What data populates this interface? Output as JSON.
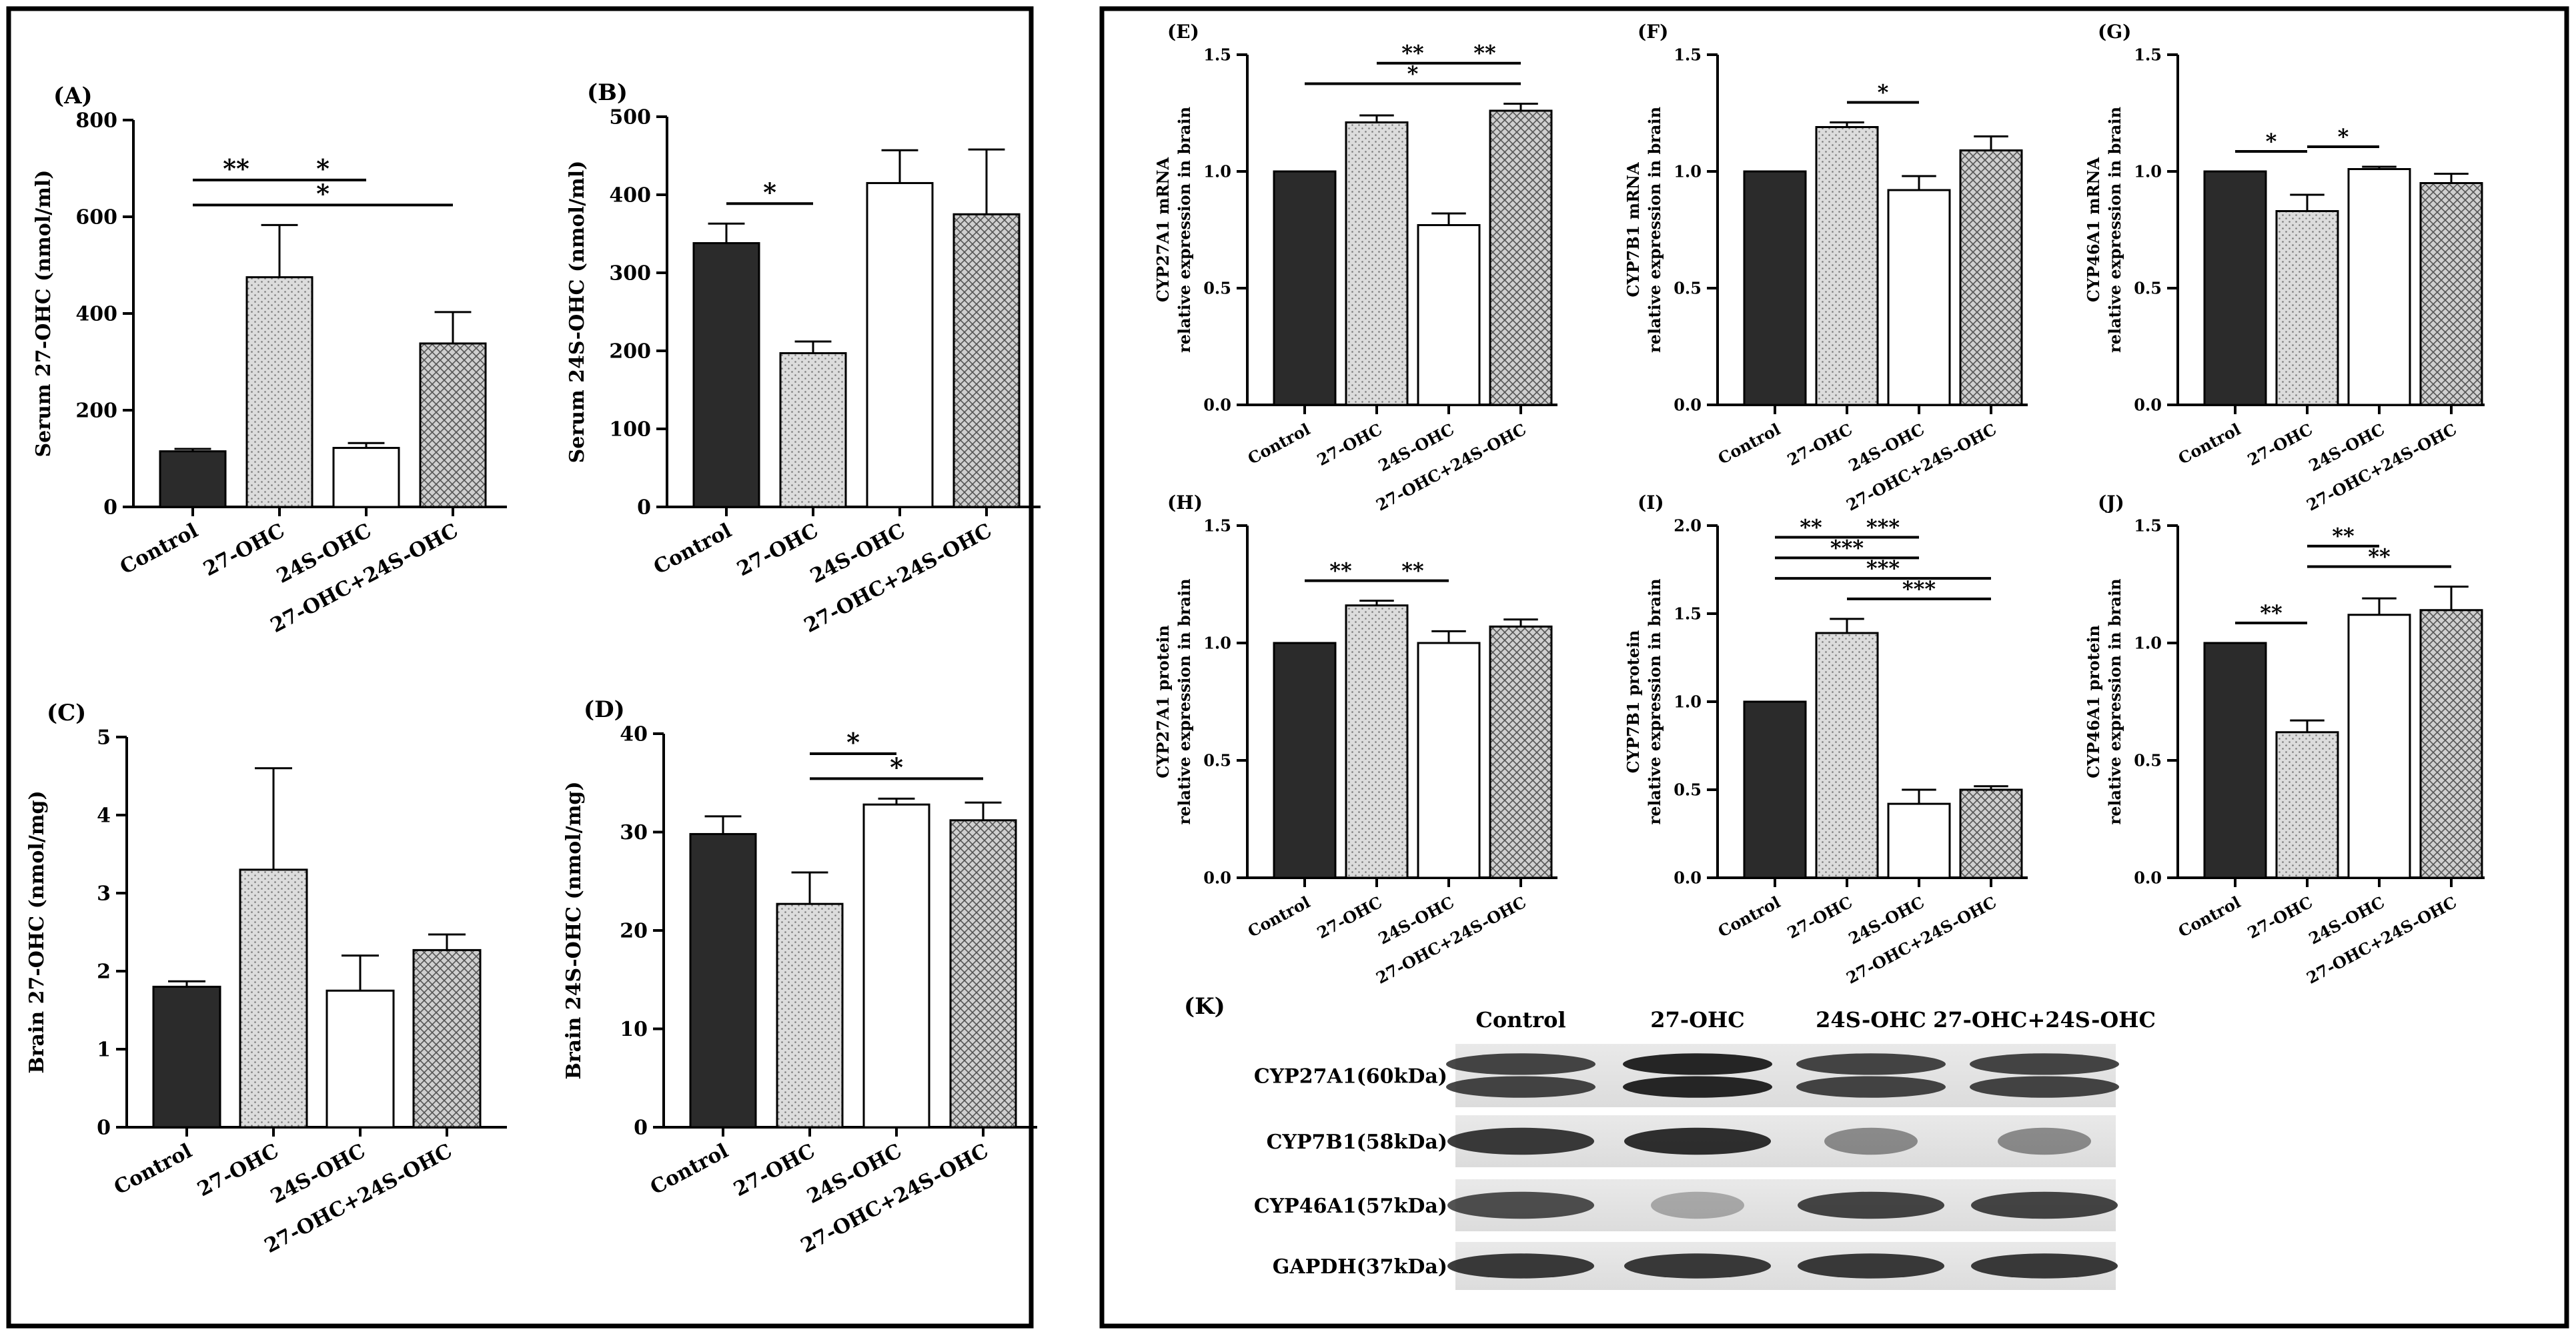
{
  "category_labels": [
    "Control",
    "27-OHC",
    "24S-OHC",
    "27-OHC+24S-OHC"
  ],
  "chart_data": [
    {
      "id": "A",
      "type": "bar",
      "panel_label": "(A)",
      "ylabel": "Serum 27-OHC (nmol/ml)",
      "ylim": [
        0,
        800
      ],
      "yticks": [
        0,
        200,
        400,
        600,
        800
      ],
      "categories": [
        "Control",
        "27-OHC",
        "24S-OHC",
        "27-OHC+24S-OHC"
      ],
      "values": [
        115,
        475,
        122,
        338
      ],
      "errors": [
        5,
        108,
        10,
        65
      ],
      "significance": [
        {
          "from": 0,
          "to": 3,
          "label": "*"
        },
        {
          "from": 0,
          "to": 1,
          "label": "**"
        },
        {
          "from": 1,
          "to": 2,
          "label": "*"
        }
      ]
    },
    {
      "id": "B",
      "type": "bar",
      "panel_label": "(B)",
      "ylabel": "Serum 24S-OHC (nmol/ml)",
      "ylim": [
        0,
        500
      ],
      "yticks": [
        0,
        100,
        200,
        300,
        400,
        500
      ],
      "categories": [
        "Control",
        "27-OHC",
        "24S-OHC",
        "27-OHC+24S-OHC"
      ],
      "values": [
        338,
        197,
        415,
        375
      ],
      "errors": [
        25,
        15,
        42,
        83
      ],
      "significance": [
        {
          "from": 0,
          "to": 1,
          "label": "*"
        }
      ]
    },
    {
      "id": "C",
      "type": "bar",
      "panel_label": "(C)",
      "ylabel": "Brain 27-OHC (nmol/mg)",
      "ylim": [
        0,
        5
      ],
      "yticks": [
        0,
        1,
        2,
        3,
        4,
        5
      ],
      "categories": [
        "Control",
        "27-OHC",
        "24S-OHC",
        "27-OHC+24S-OHC"
      ],
      "values": [
        1.8,
        3.3,
        1.75,
        2.27
      ],
      "errors": [
        0.07,
        1.3,
        0.45,
        0.2
      ],
      "significance": []
    },
    {
      "id": "D",
      "type": "bar",
      "panel_label": "(D)",
      "ylabel": "Brain 24S-OHC (nmol/mg)",
      "ylim": [
        0,
        40
      ],
      "yticks": [
        0,
        10,
        20,
        30,
        40
      ],
      "categories": [
        "Control",
        "27-OHC",
        "24S-OHC",
        "27-OHC+24S-OHC"
      ],
      "values": [
        29.8,
        22.7,
        32.8,
        31.2
      ],
      "errors": [
        1.8,
        3.2,
        0.6,
        1.8
      ],
      "significance": [
        {
          "from": 1,
          "to": 3,
          "label": "*"
        },
        {
          "from": 1,
          "to": 2,
          "label": "*"
        }
      ]
    },
    {
      "id": "E",
      "type": "bar",
      "panel_label": "(E)",
      "ylabel": [
        "CYP27A1 mRNA",
        "relative expression in brain"
      ],
      "ylim": [
        0,
        1.5
      ],
      "yticks": [
        "0.0",
        "0.5",
        "1.0",
        "1.5"
      ],
      "categories": [
        "Control",
        "27-OHC",
        "24S-OHC",
        "27-OHC+24S-OHC"
      ],
      "values": [
        1.0,
        1.21,
        0.77,
        1.26
      ],
      "errors": [
        0,
        0.03,
        0.05,
        0.03
      ],
      "significance": [
        {
          "from": 0,
          "to": 3,
          "label": "*"
        },
        {
          "from": 1,
          "to": 2,
          "label": "**"
        },
        {
          "from": 2,
          "to": 3,
          "label": "**"
        }
      ]
    },
    {
      "id": "F",
      "type": "bar",
      "panel_label": "(F)",
      "ylabel": [
        "CYP7B1 mRNA",
        "relative expression in brain"
      ],
      "ylim": [
        0,
        1.5
      ],
      "yticks": [
        "0.0",
        "0.5",
        "1.0",
        "1.5"
      ],
      "categories": [
        "Control",
        "27-OHC",
        "24S-OHC",
        "27-OHC+24S-OHC"
      ],
      "values": [
        1.0,
        1.19,
        0.92,
        1.09
      ],
      "errors": [
        0,
        0.02,
        0.06,
        0.06
      ],
      "significance": [
        {
          "from": 1,
          "to": 2,
          "label": "*"
        }
      ]
    },
    {
      "id": "G",
      "type": "bar",
      "panel_label": "(G)",
      "ylabel": [
        "CYP46A1 mRNA",
        "relative expression in brain"
      ],
      "ylim": [
        0,
        1.5
      ],
      "yticks": [
        "0.0",
        "0.5",
        "1.0",
        "1.5"
      ],
      "categories": [
        "Control",
        "27-OHC",
        "24S-OHC",
        "27-OHC+24S-OHC"
      ],
      "values": [
        1.0,
        0.83,
        1.01,
        0.95
      ],
      "errors": [
        0,
        0.07,
        0.01,
        0.04
      ],
      "significance": [
        {
          "from": 0,
          "to": 1,
          "label": "*"
        },
        {
          "from": 1,
          "to": 2,
          "label": "*"
        }
      ]
    },
    {
      "id": "H",
      "type": "bar",
      "panel_label": "(H)",
      "ylabel": [
        "CYP27A1 protein",
        "relative expression in brain"
      ],
      "ylim": [
        0,
        1.5
      ],
      "yticks": [
        "0.0",
        "0.5",
        "1.0",
        "1.5"
      ],
      "categories": [
        "Control",
        "27-OHC",
        "24S-OHC",
        "27-OHC+24S-OHC"
      ],
      "values": [
        1.0,
        1.16,
        1.0,
        1.07
      ],
      "errors": [
        0,
        0.02,
        0.05,
        0.03
      ],
      "significance": [
        {
          "from": 0,
          "to": 1,
          "label": "**"
        },
        {
          "from": 1,
          "to": 2,
          "label": "**"
        }
      ]
    },
    {
      "id": "I",
      "type": "bar",
      "panel_label": "(I)",
      "ylabel": [
        "CYP7B1 protein",
        "relative expression in brain"
      ],
      "ylim": [
        0,
        2.0
      ],
      "yticks": [
        "0.0",
        "0.5",
        "1.0",
        "1.5",
        "2.0"
      ],
      "categories": [
        "Control",
        "27-OHC",
        "24S-OHC",
        "27-OHC+24S-OHC"
      ],
      "values": [
        1.0,
        1.39,
        0.42,
        0.5
      ],
      "errors": [
        0,
        0.08,
        0.08,
        0.02
      ],
      "significance": [
        {
          "from": 1,
          "to": 3,
          "label": "***"
        },
        {
          "from": 0,
          "to": 3,
          "label": "***"
        },
        {
          "from": 0,
          "to": 2,
          "label": "***"
        },
        {
          "from": 0,
          "to": 1,
          "label": "**"
        },
        {
          "from": 1,
          "to": 2,
          "label": "***"
        }
      ]
    },
    {
      "id": "J",
      "type": "bar",
      "panel_label": "(J)",
      "ylabel": [
        "CYP46A1 protein",
        "relative expression in brain"
      ],
      "ylim": [
        0,
        1.5
      ],
      "yticks": [
        "0.0",
        "0.5",
        "1.0",
        "1.5"
      ],
      "categories": [
        "Control",
        "27-OHC",
        "24S-OHC",
        "27-OHC+24S-OHC"
      ],
      "values": [
        1.0,
        0.62,
        1.12,
        1.14
      ],
      "errors": [
        0,
        0.05,
        0.07,
        0.1
      ],
      "significance": [
        {
          "from": 1,
          "to": 3,
          "label": "**"
        },
        {
          "from": 0,
          "to": 1,
          "label": "**"
        },
        {
          "from": 1,
          "to": 2,
          "label": "**"
        }
      ]
    }
  ],
  "western_blot": {
    "panel_label": "(K)",
    "lane_labels": [
      "Control",
      "27-OHC",
      "24S-OHC",
      "27-OHC+24S-OHC"
    ],
    "rows": [
      {
        "label": "CYP27A1(60kDa)",
        "intensity": [
          0.8,
          0.95,
          0.8,
          0.8
        ],
        "double": true
      },
      {
        "label": "CYP7B1(58kDa)",
        "intensity": [
          0.85,
          0.9,
          0.45,
          0.45
        ],
        "double": false
      },
      {
        "label": "CYP46A1(57kDa)",
        "intensity": [
          0.75,
          0.3,
          0.8,
          0.8
        ],
        "double": false
      },
      {
        "label": "GAPDH(37kDa)",
        "intensity": [
          0.85,
          0.85,
          0.85,
          0.85
        ],
        "double": false
      }
    ]
  },
  "colors": {
    "control": "#2b2b2b",
    "stipple": "#d9d9d9",
    "open": "#ffffff",
    "hatch": "#bdbdbd",
    "frame": "#000000"
  }
}
